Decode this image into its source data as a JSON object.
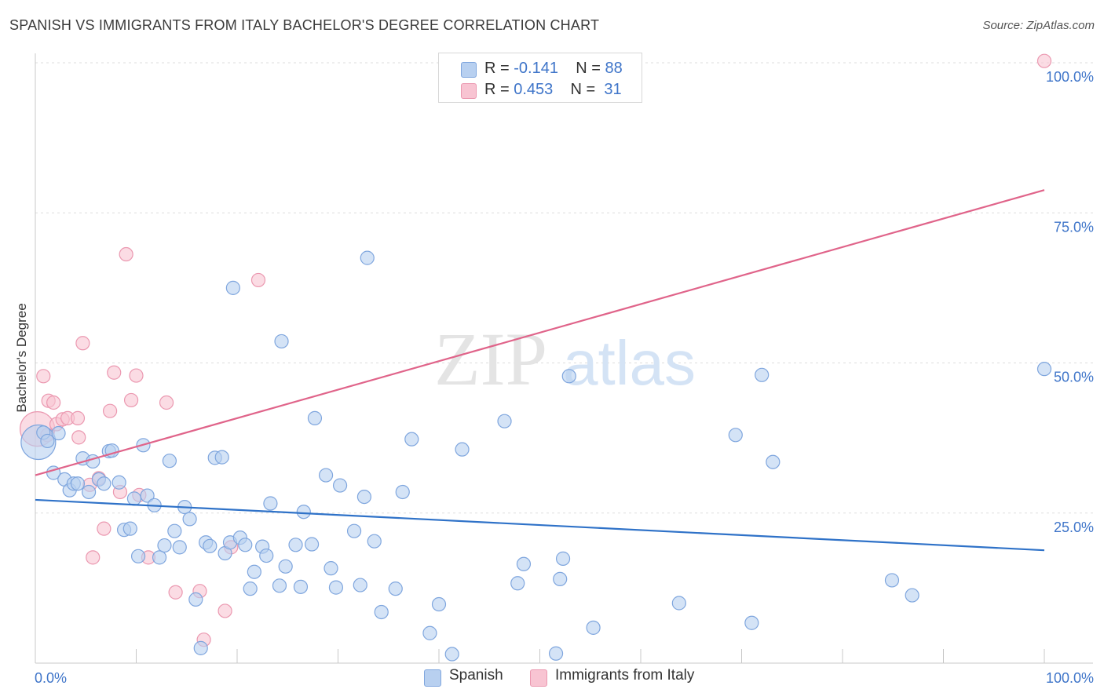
{
  "title": "SPANISH VS IMMIGRANTS FROM ITALY BACHELOR'S DEGREE CORRELATION CHART",
  "source": "Source: ZipAtlas.com",
  "watermark": {
    "zip": "ZIP",
    "atlas": "atlas"
  },
  "legend_top": {
    "rows": [
      {
        "r_label": "R =",
        "r_value": "-0.141",
        "n_label": "N =",
        "n_value": "88"
      },
      {
        "r_label": "R =",
        "r_value": "0.453",
        "n_label": "N =",
        "n_value": "31"
      }
    ]
  },
  "legend_bottom": {
    "items": [
      "Spanish",
      "Immigrants from Italy"
    ]
  },
  "colors": {
    "spanish_fill": "#b8d0f0",
    "spanish_stroke": "#7fa6de",
    "spanish_line": "#2f72c8",
    "italy_fill": "#f8c4d2",
    "italy_stroke": "#eb98b0",
    "italy_line": "#e0648a",
    "axis_text": "#3f75c9",
    "grid": "#dddddd"
  },
  "chart_data": {
    "type": "scatter",
    "title": "SPANISH VS IMMIGRANTS FROM ITALY BACHELOR'S DEGREE CORRELATION CHART",
    "xlabel": "",
    "ylabel": "Bachelor's Degree",
    "xlim": [
      0,
      100
    ],
    "ylim": [
      0,
      100
    ],
    "x_tick_labels": [
      "0.0%",
      "100.0%"
    ],
    "y_ticks": [
      25,
      50,
      75,
      100
    ],
    "y_tick_labels": [
      "25.0%",
      "50.0%",
      "75.0%",
      "100.0%"
    ],
    "series": [
      {
        "name": "Spanish",
        "r": -0.141,
        "n": 88,
        "trend": {
          "x": [
            0,
            100
          ],
          "y": [
            27.2,
            18.8
          ]
        },
        "points": [
          {
            "x": 0.3,
            "y": 36.8,
            "big": true
          },
          {
            "x": 0.8,
            "y": 38.4
          },
          {
            "x": 1.2,
            "y": 37.0
          },
          {
            "x": 2.3,
            "y": 38.3
          },
          {
            "x": 1.8,
            "y": 31.7
          },
          {
            "x": 2.9,
            "y": 30.6
          },
          {
            "x": 3.4,
            "y": 28.8
          },
          {
            "x": 3.8,
            "y": 29.9
          },
          {
            "x": 4.2,
            "y": 29.9
          },
          {
            "x": 4.7,
            "y": 34.1
          },
          {
            "x": 5.3,
            "y": 28.5
          },
          {
            "x": 5.7,
            "y": 33.6
          },
          {
            "x": 6.3,
            "y": 30.6
          },
          {
            "x": 6.8,
            "y": 29.9
          },
          {
            "x": 7.3,
            "y": 35.3
          },
          {
            "x": 7.6,
            "y": 35.4
          },
          {
            "x": 8.3,
            "y": 30.1
          },
          {
            "x": 8.8,
            "y": 22.2
          },
          {
            "x": 9.4,
            "y": 22.4
          },
          {
            "x": 9.8,
            "y": 27.4
          },
          {
            "x": 10.2,
            "y": 17.8
          },
          {
            "x": 10.7,
            "y": 36.3
          },
          {
            "x": 11.1,
            "y": 27.9
          },
          {
            "x": 11.8,
            "y": 26.3
          },
          {
            "x": 12.3,
            "y": 17.6
          },
          {
            "x": 12.8,
            "y": 19.6
          },
          {
            "x": 13.3,
            "y": 33.7
          },
          {
            "x": 13.8,
            "y": 22.0
          },
          {
            "x": 14.3,
            "y": 19.3
          },
          {
            "x": 14.8,
            "y": 26.0
          },
          {
            "x": 15.3,
            "y": 24.0
          },
          {
            "x": 15.9,
            "y": 10.6
          },
          {
            "x": 16.4,
            "y": 2.5
          },
          {
            "x": 16.9,
            "y": 20.1
          },
          {
            "x": 17.3,
            "y": 19.5
          },
          {
            "x": 17.8,
            "y": 34.2
          },
          {
            "x": 18.5,
            "y": 34.3
          },
          {
            "x": 18.8,
            "y": 18.3
          },
          {
            "x": 19.3,
            "y": 20.1
          },
          {
            "x": 19.6,
            "y": 62.5
          },
          {
            "x": 20.3,
            "y": 20.9
          },
          {
            "x": 20.8,
            "y": 19.7
          },
          {
            "x": 21.3,
            "y": 12.4
          },
          {
            "x": 21.7,
            "y": 15.2
          },
          {
            "x": 22.5,
            "y": 19.4
          },
          {
            "x": 22.9,
            "y": 17.9
          },
          {
            "x": 23.3,
            "y": 26.6
          },
          {
            "x": 24.2,
            "y": 12.9
          },
          {
            "x": 24.4,
            "y": 53.6
          },
          {
            "x": 24.8,
            "y": 16.1
          },
          {
            "x": 25.8,
            "y": 19.7
          },
          {
            "x": 26.3,
            "y": 12.7
          },
          {
            "x": 26.6,
            "y": 25.2
          },
          {
            "x": 27.4,
            "y": 19.8
          },
          {
            "x": 27.7,
            "y": 40.8
          },
          {
            "x": 28.8,
            "y": 31.3
          },
          {
            "x": 29.3,
            "y": 15.8
          },
          {
            "x": 29.8,
            "y": 12.6
          },
          {
            "x": 30.2,
            "y": 29.6
          },
          {
            "x": 31.6,
            "y": 22.0
          },
          {
            "x": 32.2,
            "y": 13.0
          },
          {
            "x": 32.6,
            "y": 27.7
          },
          {
            "x": 32.9,
            "y": 67.5
          },
          {
            "x": 33.6,
            "y": 20.3
          },
          {
            "x": 34.3,
            "y": 8.5
          },
          {
            "x": 35.7,
            "y": 12.4
          },
          {
            "x": 36.4,
            "y": 28.5
          },
          {
            "x": 37.3,
            "y": 37.3
          },
          {
            "x": 39.1,
            "y": 5.0
          },
          {
            "x": 40.0,
            "y": 9.8
          },
          {
            "x": 41.3,
            "y": 1.5
          },
          {
            "x": 42.3,
            "y": 35.6
          },
          {
            "x": 46.5,
            "y": 40.3
          },
          {
            "x": 47.8,
            "y": 13.3
          },
          {
            "x": 48.4,
            "y": 16.5
          },
          {
            "x": 51.6,
            "y": 1.6
          },
          {
            "x": 52.0,
            "y": 14.0
          },
          {
            "x": 52.3,
            "y": 17.4
          },
          {
            "x": 52.9,
            "y": 47.8
          },
          {
            "x": 55.3,
            "y": 5.9
          },
          {
            "x": 63.8,
            "y": 10.0
          },
          {
            "x": 69.4,
            "y": 38.0
          },
          {
            "x": 71.0,
            "y": 6.7
          },
          {
            "x": 72.0,
            "y": 48.0
          },
          {
            "x": 73.1,
            "y": 33.5
          },
          {
            "x": 84.9,
            "y": 13.8
          },
          {
            "x": 86.9,
            "y": 11.3
          },
          {
            "x": 100.0,
            "y": 49.0
          }
        ]
      },
      {
        "name": "Immigrants from Italy",
        "r": 0.453,
        "n": 31,
        "trend": {
          "x": [
            0,
            100
          ],
          "y": [
            31.3,
            78.8
          ]
        },
        "points": [
          {
            "x": 0.2,
            "y": 39.0,
            "big": true
          },
          {
            "x": 0.8,
            "y": 47.8
          },
          {
            "x": 1.2,
            "y": 38.0
          },
          {
            "x": 1.3,
            "y": 43.7
          },
          {
            "x": 1.8,
            "y": 43.4
          },
          {
            "x": 2.1,
            "y": 39.8
          },
          {
            "x": 2.7,
            "y": 40.6
          },
          {
            "x": 3.2,
            "y": 40.8
          },
          {
            "x": 4.2,
            "y": 40.8
          },
          {
            "x": 4.3,
            "y": 37.6
          },
          {
            "x": 4.7,
            "y": 53.3
          },
          {
            "x": 5.4,
            "y": 29.7
          },
          {
            "x": 5.7,
            "y": 17.6
          },
          {
            "x": 6.3,
            "y": 30.8
          },
          {
            "x": 6.8,
            "y": 22.4
          },
          {
            "x": 7.4,
            "y": 42.0
          },
          {
            "x": 7.8,
            "y": 48.4
          },
          {
            "x": 8.4,
            "y": 28.5
          },
          {
            "x": 9.0,
            "y": 68.1
          },
          {
            "x": 9.5,
            "y": 43.8
          },
          {
            "x": 10.0,
            "y": 47.9
          },
          {
            "x": 10.3,
            "y": 28.0
          },
          {
            "x": 11.2,
            "y": 17.6
          },
          {
            "x": 13.0,
            "y": 43.4
          },
          {
            "x": 13.9,
            "y": 11.8
          },
          {
            "x": 16.3,
            "y": 12.0
          },
          {
            "x": 16.7,
            "y": 3.9
          },
          {
            "x": 18.8,
            "y": 8.7
          },
          {
            "x": 19.4,
            "y": 19.3
          },
          {
            "x": 22.1,
            "y": 63.8
          },
          {
            "x": 100.0,
            "y": 100.3
          }
        ]
      }
    ]
  }
}
